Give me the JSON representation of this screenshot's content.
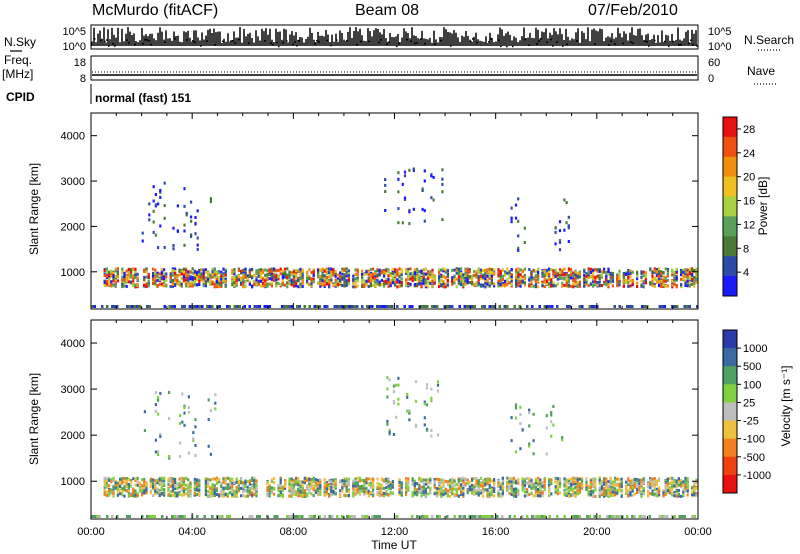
{
  "header": {
    "station": "McMurdo (fitACF)",
    "beam": "Beam 08",
    "date": "07/Feb/2010"
  },
  "noise_panel": {
    "left_label": "N.Sky",
    "right_label": "N.Search",
    "ticks_left": [
      "10^5",
      "10^0"
    ],
    "ticks_right": [
      "10^5",
      "10^0"
    ]
  },
  "freq_panel": {
    "left_label_1": "Freq.",
    "left_label_2": "[MHz]",
    "right_label": "Nave",
    "ticks_left": [
      "18",
      "8"
    ],
    "ticks_right": [
      "60",
      "0"
    ]
  },
  "cpid": {
    "label": "CPID",
    "value": "normal (fast) 151"
  },
  "colors": {
    "power_scale": [
      "#1a1aff",
      "#2e4aa8",
      "#4a7a3a",
      "#5aa05a",
      "#a8d040",
      "#f0c020",
      "#f09010",
      "#f05010",
      "#e81010"
    ],
    "velocity_scale": [
      "#e81010",
      "#f04010",
      "#f08020",
      "#f0c040",
      "#bdbdbd",
      "#80d040",
      "#50a060",
      "#3a6aa0",
      "#2a3aa8"
    ]
  },
  "chart_data": [
    {
      "type": "heatmap",
      "name": "power",
      "title": "",
      "xlabel": "",
      "ylabel": "Slant Range [km]",
      "xlim": [
        "00:00",
        "00:00"
      ],
      "x_ticks": [
        "00:00",
        "04:00",
        "08:00",
        "12:00",
        "16:00",
        "20:00",
        "00:00"
      ],
      "ylim": [
        180,
        4500
      ],
      "y_ticks": [
        1000,
        2000,
        3000,
        4000
      ],
      "colorbar": {
        "label": "Power [dB]",
        "ticks": [
          4,
          8,
          12,
          16,
          20,
          24,
          28
        ],
        "range": [
          0,
          30
        ]
      },
      "features": [
        {
          "start_ut": 0.5,
          "end_ut": 24.0,
          "range_km": [
            700,
            1100
          ],
          "level": "strong"
        },
        {
          "start_ut": 2.0,
          "end_ut": 5.0,
          "range_km": [
            1500,
            3000
          ],
          "level": "weak"
        },
        {
          "start_ut": 11.5,
          "end_ut": 14.0,
          "range_km": [
            2000,
            3300
          ],
          "level": "weak"
        },
        {
          "start_ut": 16.5,
          "end_ut": 19.0,
          "range_km": [
            1500,
            2700
          ],
          "level": "weak"
        }
      ]
    },
    {
      "type": "heatmap",
      "name": "velocity",
      "title": "",
      "xlabel": "Time UT",
      "ylabel": "Slant Range [km]",
      "xlim": [
        "00:00",
        "00:00"
      ],
      "x_ticks": [
        "00:00",
        "04:00",
        "08:00",
        "12:00",
        "16:00",
        "20:00",
        "00:00"
      ],
      "ylim": [
        180,
        4500
      ],
      "y_ticks": [
        1000,
        2000,
        3000,
        4000
      ],
      "colorbar": {
        "label": "Velocity [m s⁻¹]",
        "ticks": [
          1000,
          500,
          100,
          25,
          -25,
          -100,
          -500,
          -1000
        ]
      },
      "features": [
        {
          "start_ut": 0.5,
          "end_ut": 24.0,
          "range_km": [
            700,
            1100
          ],
          "level": "mixed"
        },
        {
          "start_ut": 2.0,
          "end_ut": 5.0,
          "range_km": [
            1500,
            3000
          ],
          "level": "weak"
        },
        {
          "start_ut": 11.5,
          "end_ut": 14.0,
          "range_km": [
            2000,
            3300
          ],
          "level": "weak"
        },
        {
          "start_ut": 16.5,
          "end_ut": 19.0,
          "range_km": [
            1500,
            2700
          ],
          "level": "weak"
        }
      ]
    }
  ]
}
